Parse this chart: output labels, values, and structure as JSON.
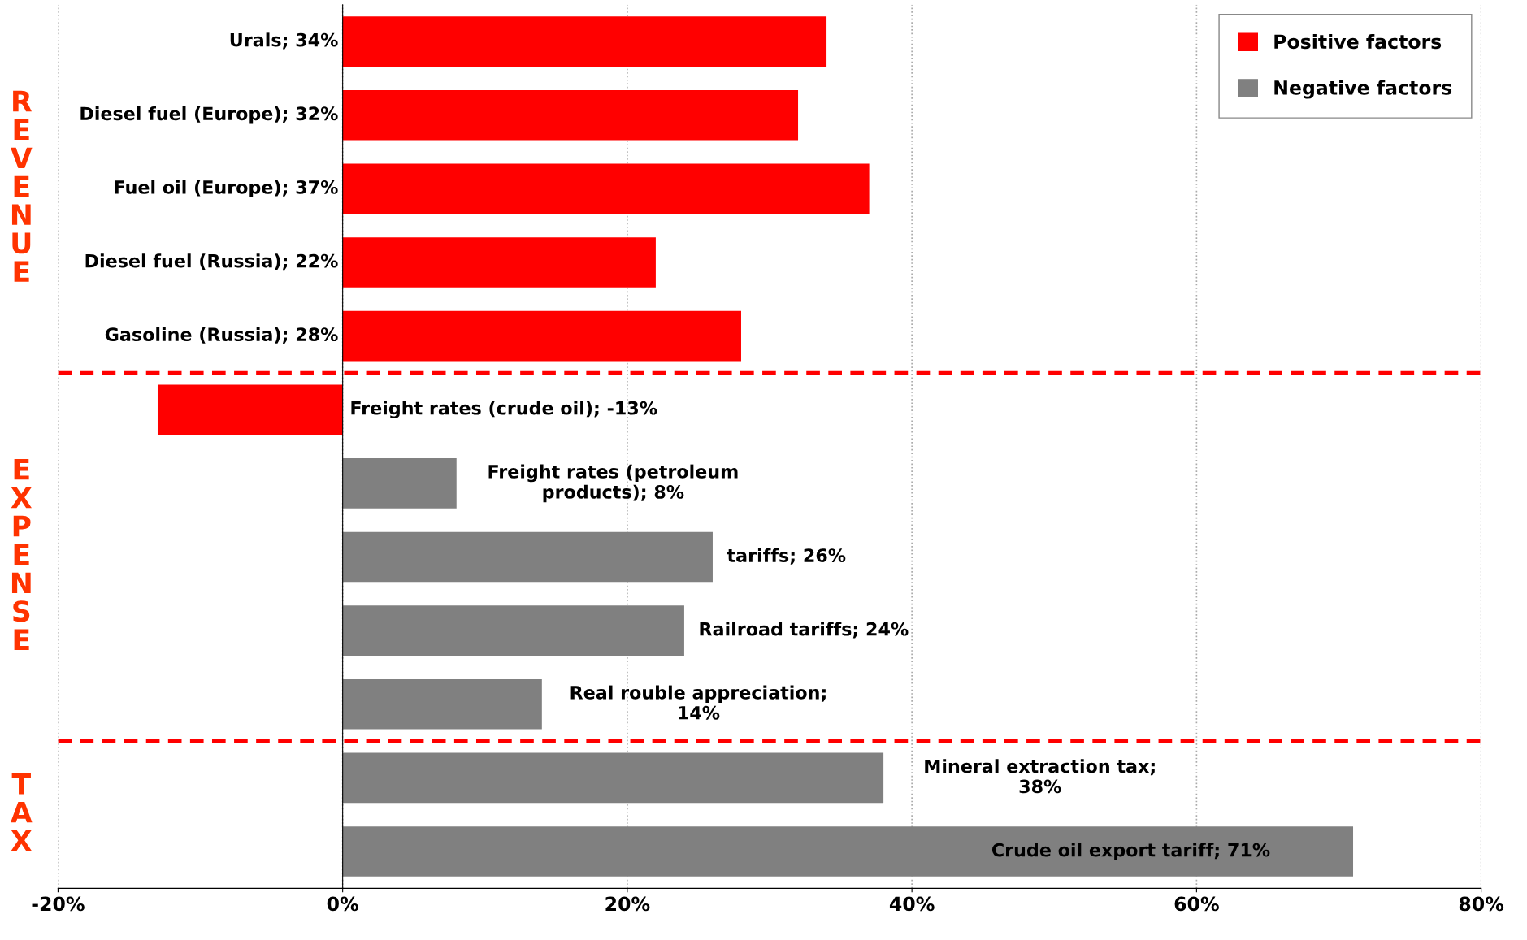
{
  "chart_data": {
    "type": "bar",
    "orientation": "horizontal",
    "categories": [
      "Urals; 34%",
      "Diesel fuel (Europe); 32%",
      "Fuel oil (Europe); 37%",
      "Diesel fuel (Russia); 22%",
      "Gasoline (Russia); 28%",
      "Freight rates (crude oil); -13%",
      "Freight rates (petroleum\nproducts); 8%",
      "tariffs; 26%",
      "Railroad tariffs; 24%",
      "Real rouble appreciation;\n14%",
      "Mineral extraction tax;\n38%",
      "Crude oil export tariff; 71%"
    ],
    "series": [
      {
        "name": "Positive factors",
        "color": "#ff0000",
        "values": [
          34,
          32,
          37,
          22,
          28,
          -13,
          null,
          null,
          null,
          null,
          null,
          null
        ]
      },
      {
        "name": "Negative factors",
        "color": "#808080",
        "values": [
          null,
          null,
          null,
          null,
          null,
          null,
          8,
          26,
          24,
          14,
          38,
          71
        ]
      }
    ],
    "xlim": [
      -20,
      80
    ],
    "xticks": [
      {
        "value": -20,
        "label": "-20%"
      },
      {
        "value": 0,
        "label": "0%"
      },
      {
        "value": 20,
        "label": "20%"
      },
      {
        "value": 40,
        "label": "40%"
      },
      {
        "value": 60,
        "label": "60%"
      },
      {
        "value": 80,
        "label": "80%"
      }
    ],
    "grid": "x",
    "legend": "top right",
    "annotations": [
      "REVENUE",
      "EXPENSE",
      "TAX"
    ]
  }
}
